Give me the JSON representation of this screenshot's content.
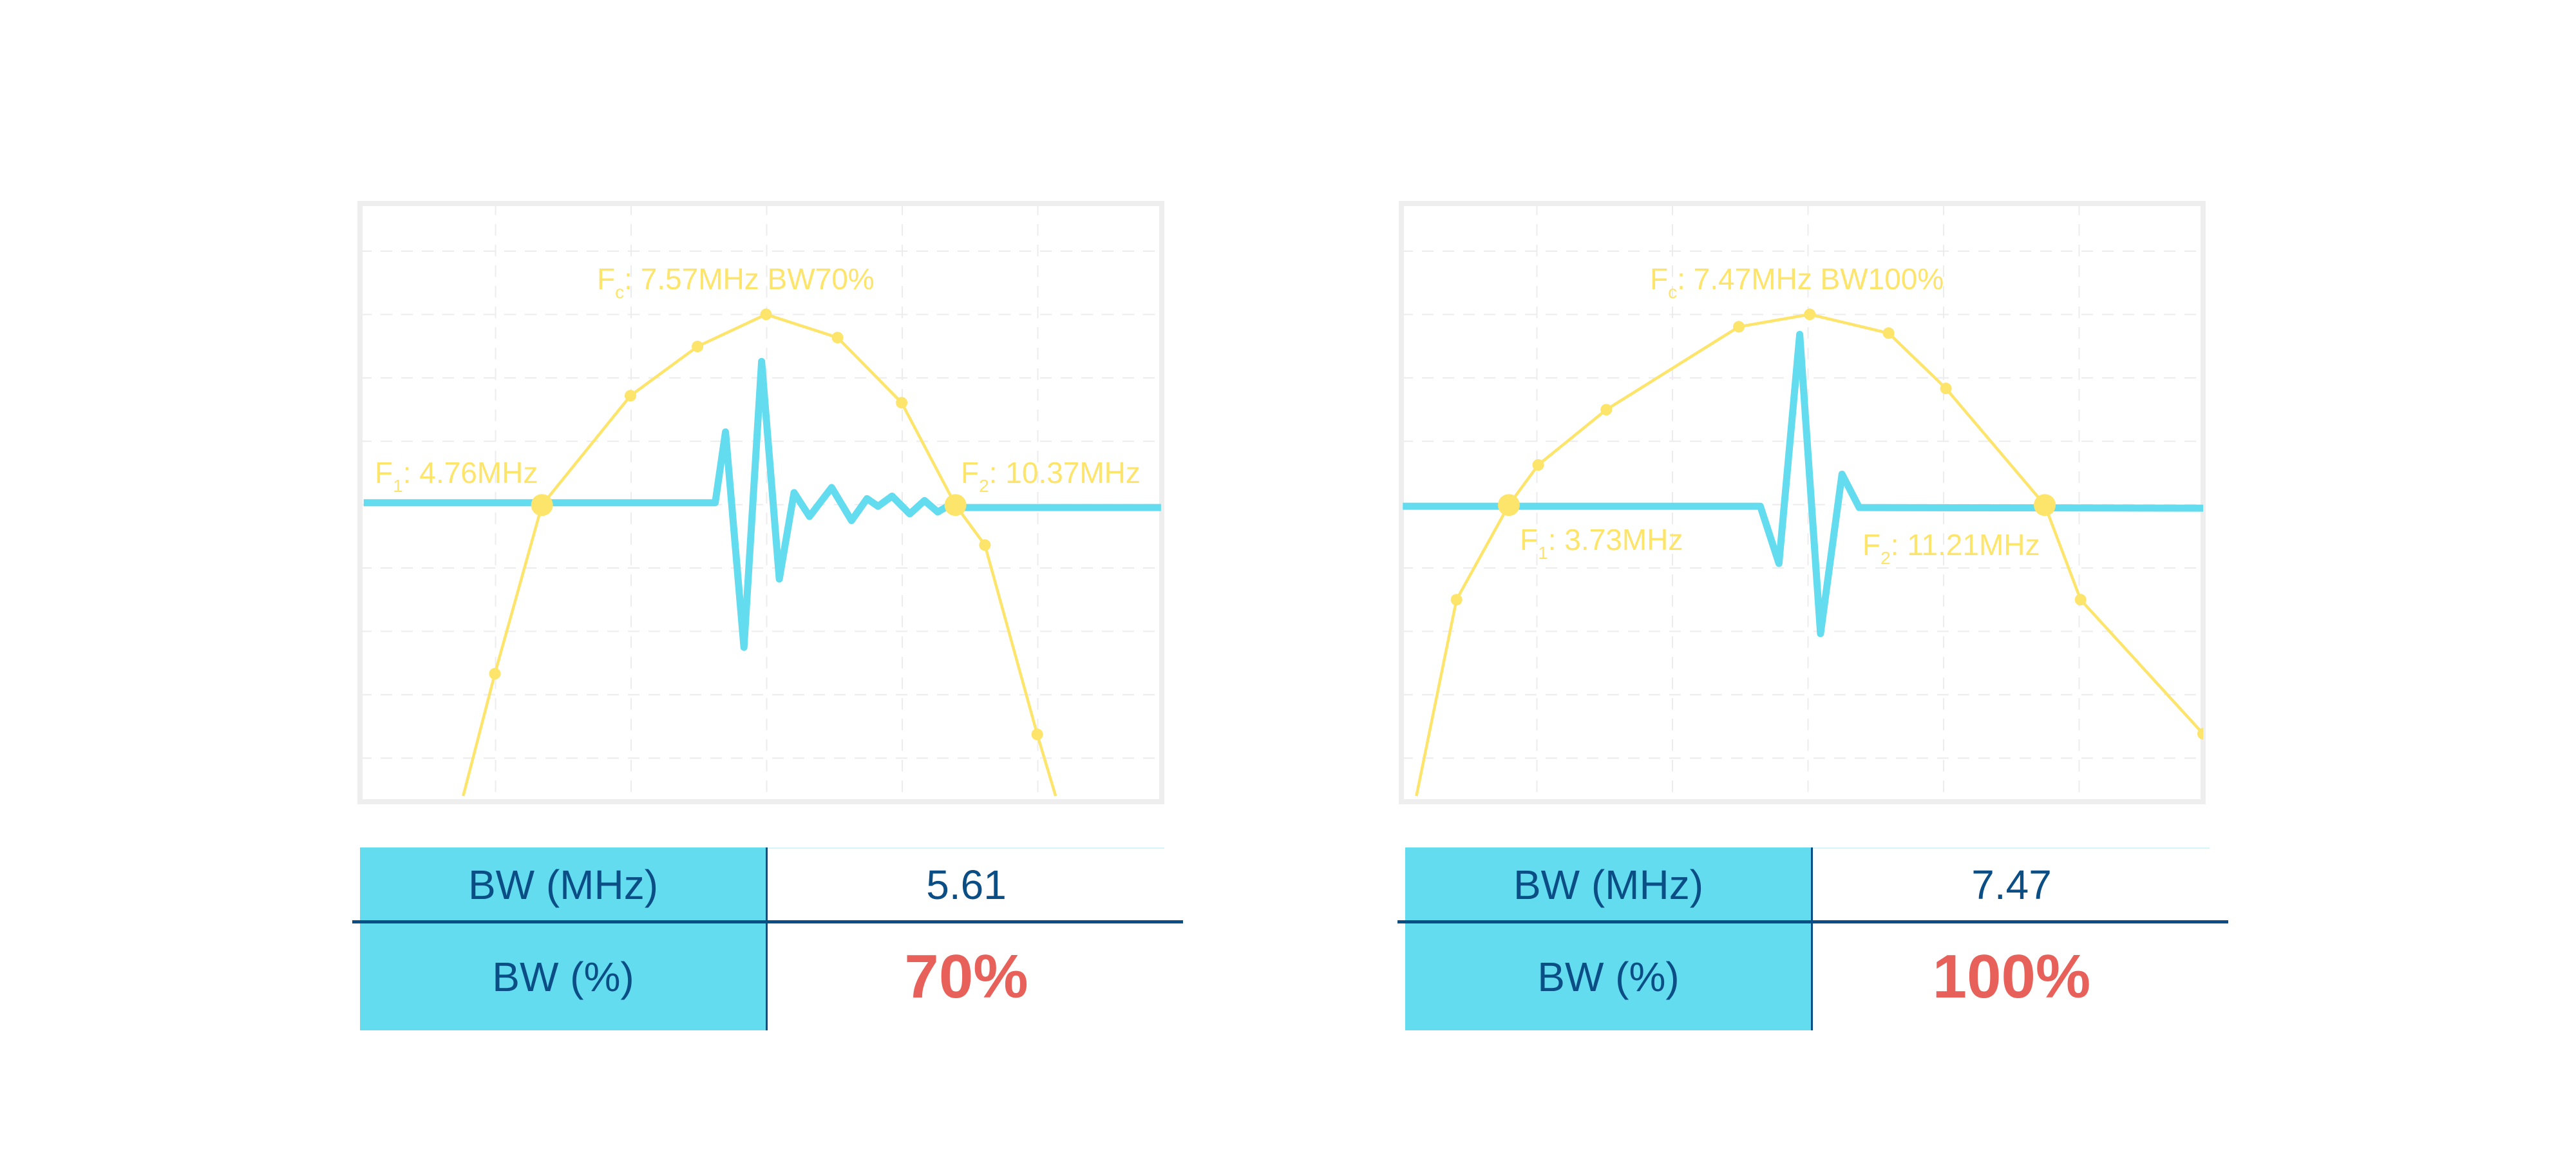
{
  "colors": {
    "spectrum": "#fde46a",
    "pulse": "#62dcee",
    "frame": "#eeeeee",
    "table_header_bg": "#62dcee",
    "table_text": "#0b4e85",
    "percent_text": "#e8605a"
  },
  "chart_data": [
    {
      "type": "line",
      "grid": true,
      "xlabel": "",
      "ylabel": "",
      "xlim": [
        2.29,
        13.17
      ],
      "ylim": [
        -15.34,
        3.49
      ],
      "annotations": {
        "fc": {
          "prefix": "F",
          "sub": "c",
          "text": ": 7.57MHz BW70%"
        },
        "f1": {
          "prefix": "F",
          "sub": "1",
          "text": ": 4.76MHz",
          "x": 4.76,
          "y": -6
        },
        "f2": {
          "prefix": "F",
          "sub": "2",
          "text": ": 10.37MHz",
          "x": 10.37,
          "y": -6
        }
      },
      "series": [
        {
          "kind": "spectrum",
          "x": [
            3.69,
            4.12,
            4.76,
            5.96,
            6.87,
            7.8,
            8.77,
            9.64,
            10.37,
            10.77,
            11.48,
            11.73
          ],
          "y": [
            -15.16,
            -11.31,
            -6,
            -2.56,
            -1.01,
            0,
            -0.73,
            -2.78,
            -6,
            -7.26,
            -13.22,
            -15.16
          ],
          "markers": [
            false,
            true,
            true,
            true,
            true,
            true,
            true,
            true,
            true,
            true,
            true,
            false
          ]
        },
        {
          "kind": "pulse",
          "x": [
            2.34,
            7.11,
            7.25,
            7.5,
            7.74,
            7.98,
            8.18,
            8.39,
            8.69,
            8.96,
            9.17,
            9.32,
            9.51,
            9.75,
            9.95,
            10.13,
            10.35,
            10.49,
            13.16
          ],
          "y": [
            -5.93,
            -5.93,
            -3.7,
            -10.48,
            -1.48,
            -8.33,
            -5.61,
            -6.36,
            -5.45,
            -6.49,
            -5.8,
            -6.04,
            -5.72,
            -6.28,
            -5.86,
            -6.22,
            -5.92,
            -6.08,
            -6.08
          ]
        }
      ]
    },
    {
      "type": "line",
      "grid": true,
      "xlabel": "",
      "ylabel": "",
      "xlim": [
        2.23,
        13.42
      ],
      "ylim": [
        -15.34,
        3.49
      ],
      "annotations": {
        "fc": {
          "prefix": "F",
          "sub": "c",
          "text": ": 7.47MHz BW100%"
        },
        "f1": {
          "prefix": "F",
          "sub": "1",
          "text": ": 3.73MHz",
          "x": 3.73,
          "y": -6
        },
        "f2": {
          "prefix": "F",
          "sub": "2",
          "text": ": 11.21MHz",
          "x": 11.21,
          "y": -6
        }
      },
      "series": [
        {
          "kind": "spectrum",
          "x": [
            2.44,
            3.0,
            3.73,
            4.14,
            5.09,
            6.94,
            7.93,
            9.03,
            9.83,
            11.21,
            11.71,
            13.42
          ],
          "y": [
            -15.16,
            -8.98,
            -6,
            -4.74,
            -3.0,
            -0.39,
            0,
            -0.59,
            -2.33,
            -6,
            -8.98,
            -13.2
          ],
          "markers": [
            false,
            true,
            true,
            true,
            true,
            true,
            true,
            true,
            true,
            true,
            true,
            true
          ]
        },
        {
          "kind": "pulse",
          "x": [
            2.25,
            7.24,
            7.5,
            7.79,
            8.08,
            8.38,
            8.62,
            13.42
          ],
          "y": [
            -6.04,
            -6.04,
            -7.84,
            -0.63,
            -10.05,
            -5.03,
            -6.08,
            -6.1
          ]
        }
      ]
    }
  ],
  "tables": [
    {
      "rows": [
        {
          "label": "BW (MHz)",
          "value": "5.61"
        },
        {
          "label": "BW (%)",
          "value": "70%"
        }
      ]
    },
    {
      "rows": [
        {
          "label": "BW (MHz)",
          "value": "7.47"
        },
        {
          "label": "BW (%)",
          "value": "100%"
        }
      ]
    }
  ]
}
